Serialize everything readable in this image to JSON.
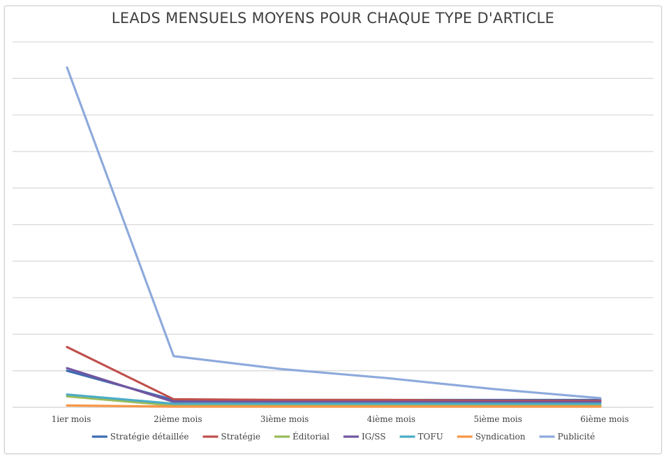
{
  "chart_data": {
    "type": "line",
    "title": "LEADS MENSUELS MOYENS POUR CHAQUE TYPE D'ARTICLE",
    "xlabel": "",
    "ylabel": "",
    "categories": [
      "1ier mois",
      "2ième mois",
      "3ième mois",
      "4ième mois",
      "5ième mois",
      "6ième mois"
    ],
    "ylim": [
      0,
      10
    ],
    "grid": true,
    "legend_position": "bottom",
    "series": [
      {
        "name": "Stratégie détaillée",
        "color": "#3e6cb4",
        "values": [
          1.0,
          0.2,
          0.2,
          0.2,
          0.2,
          0.2
        ]
      },
      {
        "name": "Stratégie",
        "color": "#c0504d",
        "values": [
          1.65,
          0.22,
          0.2,
          0.2,
          0.18,
          0.18
        ]
      },
      {
        "name": "Éditorial",
        "color": "#9bbb59",
        "values": [
          0.3,
          0.05,
          0.05,
          0.05,
          0.05,
          0.05
        ]
      },
      {
        "name": "IG/SS",
        "color": "#7156a0",
        "values": [
          1.07,
          0.15,
          0.15,
          0.15,
          0.15,
          0.15
        ]
      },
      {
        "name": "TOFU",
        "color": "#4bacc6",
        "values": [
          0.35,
          0.1,
          0.1,
          0.1,
          0.1,
          0.1
        ]
      },
      {
        "name": "Syndication",
        "color": "#f79646",
        "values": [
          0.05,
          0.02,
          0.02,
          0.02,
          0.02,
          0.02
        ]
      },
      {
        "name": "Publicité",
        "color": "#8eaadc",
        "values": [
          9.3,
          1.4,
          1.05,
          0.8,
          0.5,
          0.25
        ]
      }
    ]
  }
}
